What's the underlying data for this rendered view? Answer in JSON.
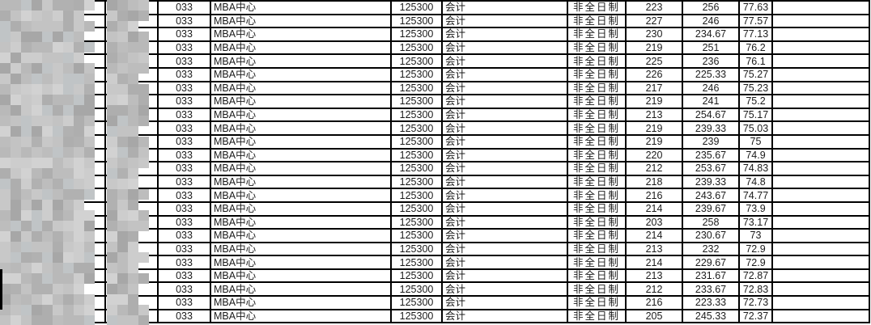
{
  "document": {
    "type": "admission-score-table",
    "visible_header": false
  },
  "colors": {
    "table_border": "#000000",
    "number_text": "#1b1b1b",
    "cjk_text": "#4a4a51",
    "background": "#ffffff"
  },
  "mosaic": {
    "palette": [
      "#b9b9b9",
      "#c3c3c3",
      "#aeaeae",
      "#cdcdcd",
      "#b1b1b1",
      "#c8c8c8",
      "#a7a7a7",
      "#d2d2d2",
      "#bdbdbd",
      "#c0c4c6"
    ]
  },
  "rows": [
    {
      "dept_code": "033",
      "dept_name": "MBA中心",
      "major_code": "125300",
      "major_name": "会计",
      "study_type": "非全日制",
      "score_a": "223",
      "score_b": "256",
      "score_total": "77.63"
    },
    {
      "dept_code": "033",
      "dept_name": "MBA中心",
      "major_code": "125300",
      "major_name": "会计",
      "study_type": "非全日制",
      "score_a": "227",
      "score_b": "246",
      "score_total": "77.57"
    },
    {
      "dept_code": "033",
      "dept_name": "MBA中心",
      "major_code": "125300",
      "major_name": "会计",
      "study_type": "非全日制",
      "score_a": "230",
      "score_b": "234.67",
      "score_total": "77.13"
    },
    {
      "dept_code": "033",
      "dept_name": "MBA中心",
      "major_code": "125300",
      "major_name": "会计",
      "study_type": "非全日制",
      "score_a": "219",
      "score_b": "251",
      "score_total": "76.2"
    },
    {
      "dept_code": "033",
      "dept_name": "MBA中心",
      "major_code": "125300",
      "major_name": "会计",
      "study_type": "非全日制",
      "score_a": "225",
      "score_b": "236",
      "score_total": "76.1"
    },
    {
      "dept_code": "033",
      "dept_name": "MBA中心",
      "major_code": "125300",
      "major_name": "会计",
      "study_type": "非全日制",
      "score_a": "226",
      "score_b": "225.33",
      "score_total": "75.27"
    },
    {
      "dept_code": "033",
      "dept_name": "MBA中心",
      "major_code": "125300",
      "major_name": "会计",
      "study_type": "非全日制",
      "score_a": "217",
      "score_b": "246",
      "score_total": "75.23"
    },
    {
      "dept_code": "033",
      "dept_name": "MBA中心",
      "major_code": "125300",
      "major_name": "会计",
      "study_type": "非全日制",
      "score_a": "219",
      "score_b": "241",
      "score_total": "75.2"
    },
    {
      "dept_code": "033",
      "dept_name": "MBA中心",
      "major_code": "125300",
      "major_name": "会计",
      "study_type": "非全日制",
      "score_a": "213",
      "score_b": "254.67",
      "score_total": "75.17"
    },
    {
      "dept_code": "033",
      "dept_name": "MBA中心",
      "major_code": "125300",
      "major_name": "会计",
      "study_type": "非全日制",
      "score_a": "219",
      "score_b": "239.33",
      "score_total": "75.03"
    },
    {
      "dept_code": "033",
      "dept_name": "MBA中心",
      "major_code": "125300",
      "major_name": "会计",
      "study_type": "非全日制",
      "score_a": "219",
      "score_b": "239",
      "score_total": "75"
    },
    {
      "dept_code": "033",
      "dept_name": "MBA中心",
      "major_code": "125300",
      "major_name": "会计",
      "study_type": "非全日制",
      "score_a": "220",
      "score_b": "235.67",
      "score_total": "74.9"
    },
    {
      "dept_code": "033",
      "dept_name": "MBA中心",
      "major_code": "125300",
      "major_name": "会计",
      "study_type": "非全日制",
      "score_a": "212",
      "score_b": "253.67",
      "score_total": "74.83"
    },
    {
      "dept_code": "033",
      "dept_name": "MBA中心",
      "major_code": "125300",
      "major_name": "会计",
      "study_type": "非全日制",
      "score_a": "218",
      "score_b": "239.33",
      "score_total": "74.8"
    },
    {
      "dept_code": "033",
      "dept_name": "MBA中心",
      "major_code": "125300",
      "major_name": "会计",
      "study_type": "非全日制",
      "score_a": "216",
      "score_b": "243.67",
      "score_total": "74.77"
    },
    {
      "dept_code": "033",
      "dept_name": "MBA中心",
      "major_code": "125300",
      "major_name": "会计",
      "study_type": "非全日制",
      "score_a": "214",
      "score_b": "239.67",
      "score_total": "73.9"
    },
    {
      "dept_code": "033",
      "dept_name": "MBA中心",
      "major_code": "125300",
      "major_name": "会计",
      "study_type": "非全日制",
      "score_a": "203",
      "score_b": "258",
      "score_total": "73.17"
    },
    {
      "dept_code": "033",
      "dept_name": "MBA中心",
      "major_code": "125300",
      "major_name": "会计",
      "study_type": "非全日制",
      "score_a": "214",
      "score_b": "230.67",
      "score_total": "73"
    },
    {
      "dept_code": "033",
      "dept_name": "MBA中心",
      "major_code": "125300",
      "major_name": "会计",
      "study_type": "非全日制",
      "score_a": "213",
      "score_b": "232",
      "score_total": "72.9"
    },
    {
      "dept_code": "033",
      "dept_name": "MBA中心",
      "major_code": "125300",
      "major_name": "会计",
      "study_type": "非全日制",
      "score_a": "214",
      "score_b": "229.67",
      "score_total": "72.9"
    },
    {
      "dept_code": "033",
      "dept_name": "MBA中心",
      "major_code": "125300",
      "major_name": "会计",
      "study_type": "非全日制",
      "score_a": "213",
      "score_b": "231.67",
      "score_total": "72.87"
    },
    {
      "dept_code": "033",
      "dept_name": "MBA中心",
      "major_code": "125300",
      "major_name": "会计",
      "study_type": "非全日制",
      "score_a": "212",
      "score_b": "233.67",
      "score_total": "72.83"
    },
    {
      "dept_code": "033",
      "dept_name": "MBA中心",
      "major_code": "125300",
      "major_name": "会计",
      "study_type": "非全日制",
      "score_a": "216",
      "score_b": "223.33",
      "score_total": "72.73"
    },
    {
      "dept_code": "033",
      "dept_name": "MBA中心",
      "major_code": "125300",
      "major_name": "会计",
      "study_type": "非全日制",
      "score_a": "205",
      "score_b": "245.33",
      "score_total": "72.37"
    }
  ]
}
